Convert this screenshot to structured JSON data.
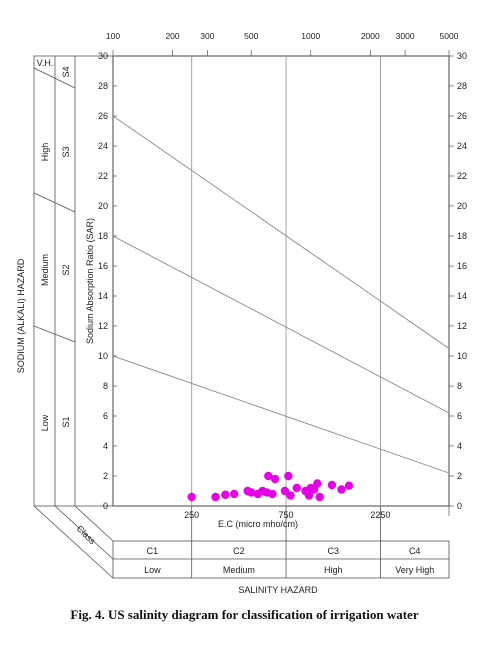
{
  "caption": "Fig. 4. US salinity diagram for classification of irrigation water",
  "chart_data": {
    "type": "scatter",
    "ylabel": "Sodium Absorption Ratio (SAR)",
    "xlabel": "E.C (micro mho/cm)",
    "left_axis_title": "SODIUM (ALKALI) HAZARD",
    "bottom_title": "SALINITY HAZARD",
    "class_label": "Class",
    "vh_label": "V.H.",
    "ylim": [
      0,
      30
    ],
    "y_ticks": [
      0,
      2,
      4,
      6,
      8,
      10,
      12,
      14,
      16,
      18,
      20,
      22,
      24,
      26,
      28,
      30
    ],
    "x_scale": "log",
    "xlim": [
      100,
      5000
    ],
    "top_ticks": [
      {
        "value": 100,
        "label": "100"
      },
      {
        "value": 200,
        "label": "200"
      },
      {
        "value": 300,
        "label": "300"
      },
      {
        "value": 500,
        "label": "500"
      },
      {
        "value": 1000,
        "label": "1000"
      },
      {
        "value": 2000,
        "label": "2000"
      },
      {
        "value": 3000,
        "label": "3000"
      },
      {
        "value": 5000,
        "label": "5000"
      }
    ],
    "bottom_ticks": [
      {
        "value": 250,
        "label": "250"
      },
      {
        "value": 750,
        "label": "750"
      },
      {
        "value": 2250,
        "label": "2250"
      }
    ],
    "salinity_classes": [
      {
        "class": "C1",
        "hazard": "Low",
        "from": 100,
        "to": 250
      },
      {
        "class": "C2",
        "hazard": "Medium",
        "from": 250,
        "to": 750
      },
      {
        "class": "C3",
        "hazard": "High",
        "from": 750,
        "to": 2250
      },
      {
        "class": "C4",
        "hazard": "Very High",
        "from": 2250,
        "to": 5000
      }
    ],
    "sodium_classes": [
      {
        "class": "S1",
        "hazard": "Low"
      },
      {
        "class": "S2",
        "hazard": "Medium"
      },
      {
        "class": "S3",
        "hazard": "High"
      },
      {
        "class": "S4",
        "hazard": "V.H."
      }
    ],
    "boundary_lines": [
      {
        "y_at_100": 10,
        "y_at_5000": 2.2
      },
      {
        "y_at_100": 18,
        "y_at_5000": 6.2
      },
      {
        "y_at_100": 26,
        "y_at_5000": 10.5
      }
    ],
    "point_color": "#e600e6",
    "points": [
      {
        "x": 250,
        "y": 0.6
      },
      {
        "x": 330,
        "y": 0.6
      },
      {
        "x": 370,
        "y": 0.75
      },
      {
        "x": 410,
        "y": 0.8
      },
      {
        "x": 480,
        "y": 1.0
      },
      {
        "x": 500,
        "y": 0.9
      },
      {
        "x": 540,
        "y": 0.8
      },
      {
        "x": 570,
        "y": 1.0
      },
      {
        "x": 600,
        "y": 0.9
      },
      {
        "x": 610,
        "y": 2.0
      },
      {
        "x": 640,
        "y": 0.8
      },
      {
        "x": 660,
        "y": 1.8
      },
      {
        "x": 740,
        "y": 1.0
      },
      {
        "x": 770,
        "y": 2.0
      },
      {
        "x": 790,
        "y": 0.7
      },
      {
        "x": 850,
        "y": 1.2
      },
      {
        "x": 940,
        "y": 1.0
      },
      {
        "x": 980,
        "y": 0.7
      },
      {
        "x": 1000,
        "y": 1.2
      },
      {
        "x": 1040,
        "y": 1.1
      },
      {
        "x": 1080,
        "y": 1.5
      },
      {
        "x": 1110,
        "y": 0.6
      },
      {
        "x": 1280,
        "y": 1.4
      },
      {
        "x": 1430,
        "y": 1.1
      },
      {
        "x": 1560,
        "y": 1.35
      }
    ]
  }
}
